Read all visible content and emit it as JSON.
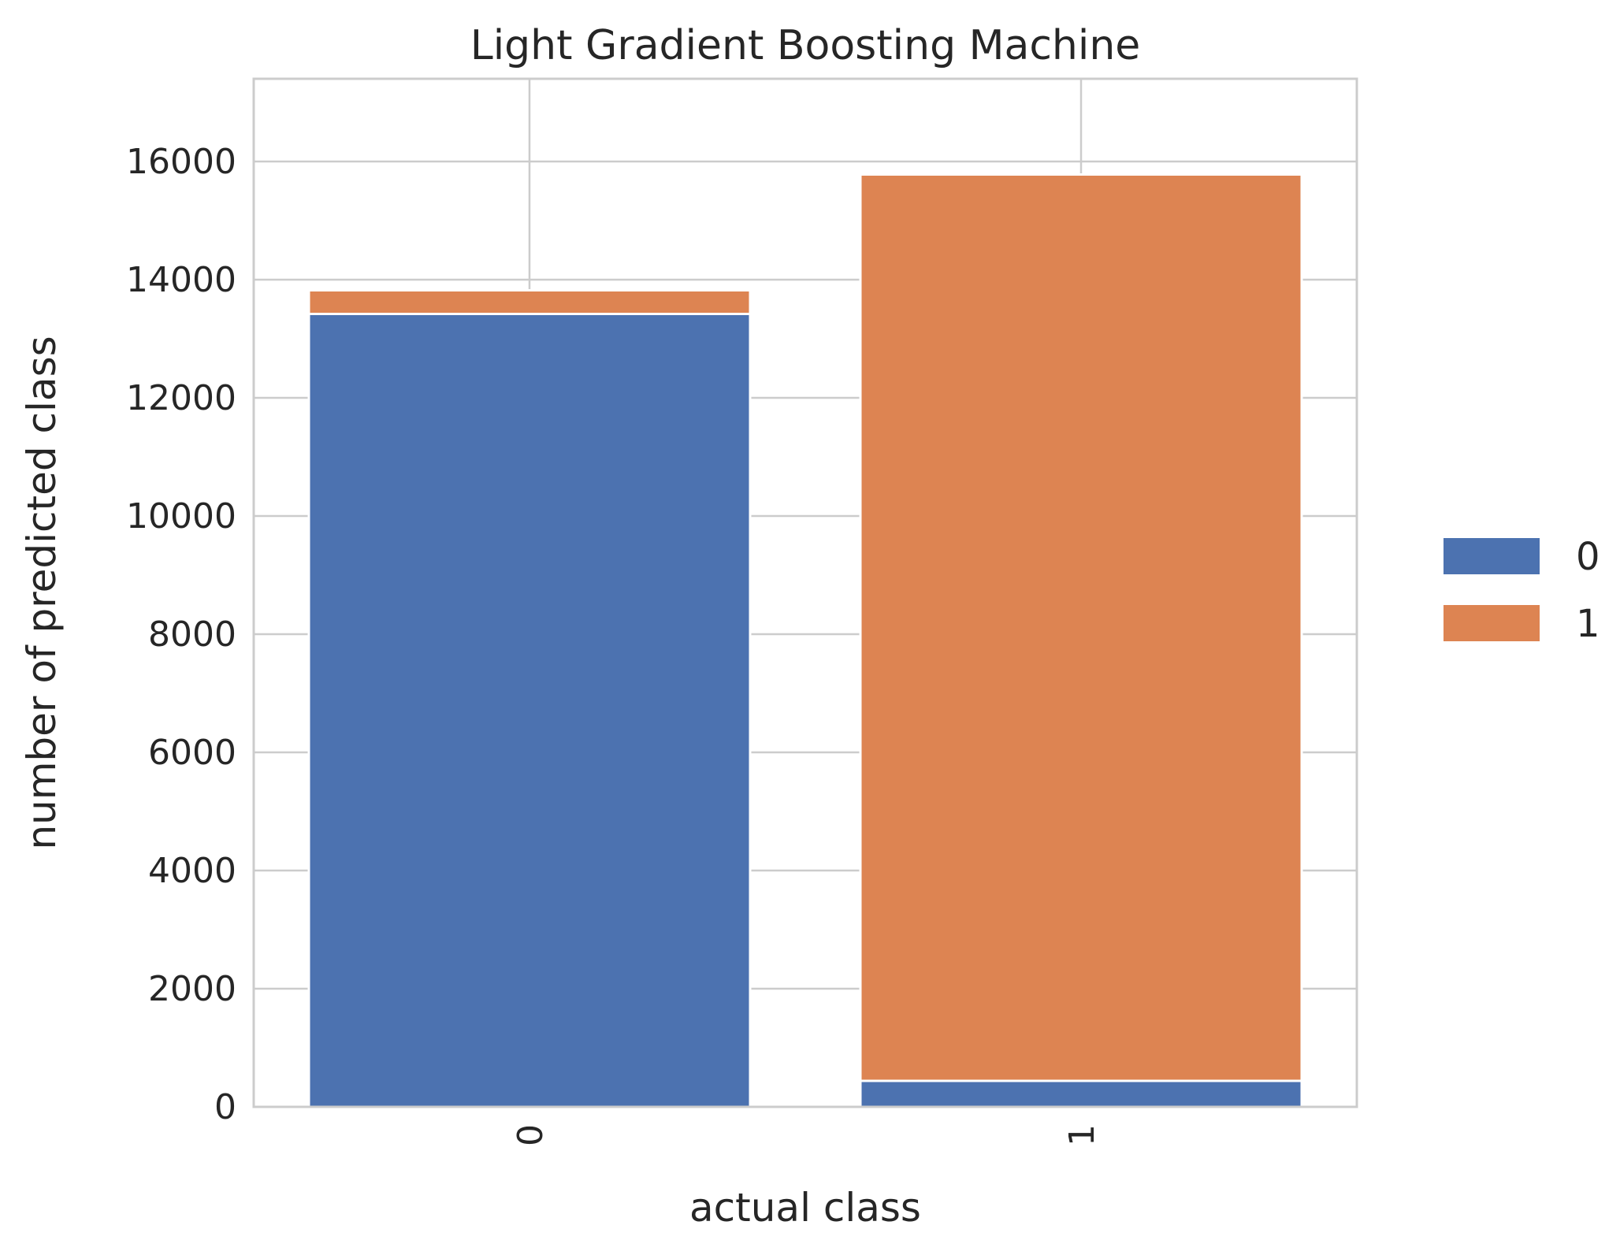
{
  "chart_data": {
    "type": "bar",
    "stacked": true,
    "title": "Light Gradient Boosting Machine",
    "xlabel": "actual class",
    "ylabel": "number of predicted class",
    "categories": [
      "0",
      "1"
    ],
    "series": [
      {
        "name": "0",
        "color": "#4c72b0",
        "values": [
          13420,
          440
        ]
      },
      {
        "name": "1",
        "color": "#dd8452",
        "values": [
          400,
          15340
        ]
      }
    ],
    "ylim": [
      0,
      17400
    ],
    "yticks": [
      0,
      2000,
      4000,
      6000,
      8000,
      10000,
      12000,
      14000,
      16000
    ],
    "grid": true,
    "legend_position": "right",
    "x_tick_rotation": 90
  }
}
